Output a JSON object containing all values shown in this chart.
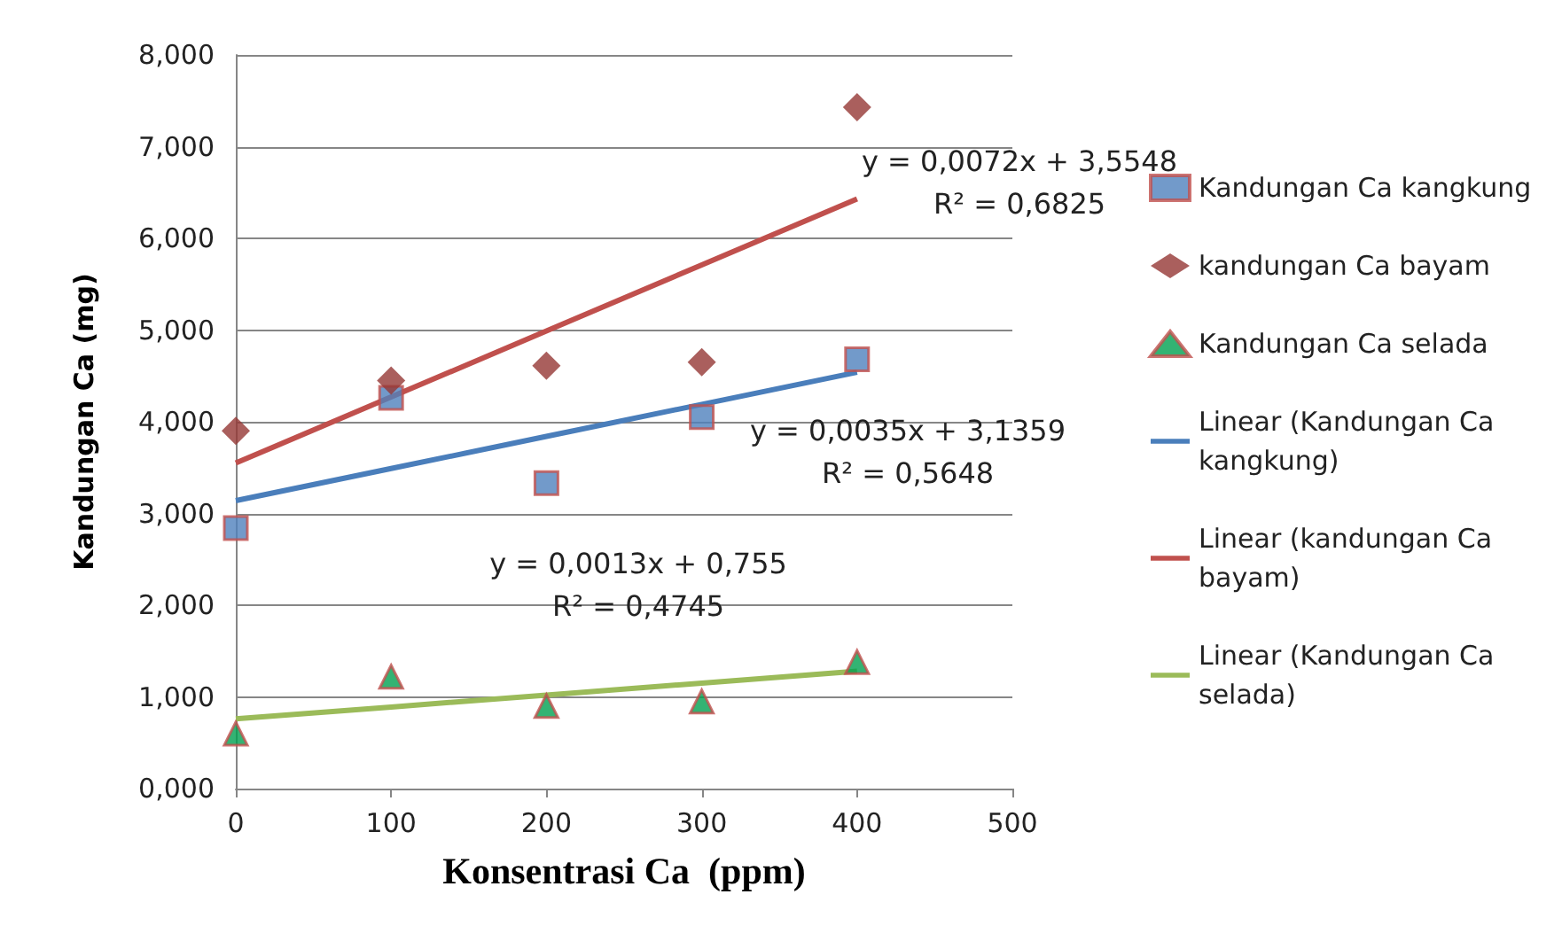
{
  "chart_data": {
    "type": "scatter",
    "xlabel": "Konsentrasi Ca  (ppm)",
    "ylabel": "Kandungan Ca (mg)",
    "x": [
      0,
      100,
      200,
      300,
      400
    ],
    "series": [
      {
        "name": "Kandungan Ca kangkung",
        "color": "#4f81bd",
        "marker": "square",
        "values": [
          2.84,
          4.26,
          3.33,
          4.05,
          4.68
        ]
      },
      {
        "name": "kandungan Ca bayam",
        "color": "#953735",
        "marker": "diamond",
        "values": [
          3.9,
          4.45,
          4.61,
          4.65,
          7.43
        ]
      },
      {
        "name": "Kandungan Ca selada",
        "color": "#00a050",
        "marker": "triangle",
        "values": [
          0.6,
          1.22,
          0.9,
          0.95,
          1.38
        ]
      },
      {
        "name": "Linear (Kandungan Ca kangkung)",
        "type": "line",
        "color": "#4a7ebb",
        "marker": "none",
        "values": [
          3.14,
          3.49,
          3.84,
          4.19,
          4.54
        ]
      },
      {
        "name": "Linear (kandungan Ca bayam)",
        "type": "line",
        "color": "#c0504d",
        "marker": "none",
        "values": [
          3.55,
          4.27,
          4.99,
          5.71,
          6.43
        ]
      },
      {
        "name": "Linear (Kandungan Ca selada)",
        "type": "line",
        "color": "#9bbb59",
        "marker": "none",
        "values": [
          0.76,
          0.89,
          1.02,
          1.15,
          1.28
        ]
      }
    ],
    "annotations": [
      "y = 0,0072x + 3,5548\nR² = 0,6825",
      "y = 0,0035x + 3,1359\nR² = 0,5648",
      "y = 0,0013x + 0,755\nR² = 0,4745"
    ],
    "xlim": [
      0,
      500
    ],
    "xticks": [
      0,
      100,
      200,
      300,
      400,
      500
    ],
    "ylim": [
      0,
      8
    ],
    "yticks": [
      {
        "value": 0,
        "label": "0,000"
      },
      {
        "value": 1,
        "label": "1,000"
      },
      {
        "value": 2,
        "label": "2,000"
      },
      {
        "value": 3,
        "label": "3,000"
      },
      {
        "value": 4,
        "label": "4,000"
      },
      {
        "value": 5,
        "label": "5,000"
      },
      {
        "value": 6,
        "label": "6,000"
      },
      {
        "value": 7,
        "label": "7,000"
      },
      {
        "value": 8,
        "label": "8,000"
      }
    ],
    "grid": "y",
    "legend": "right"
  }
}
